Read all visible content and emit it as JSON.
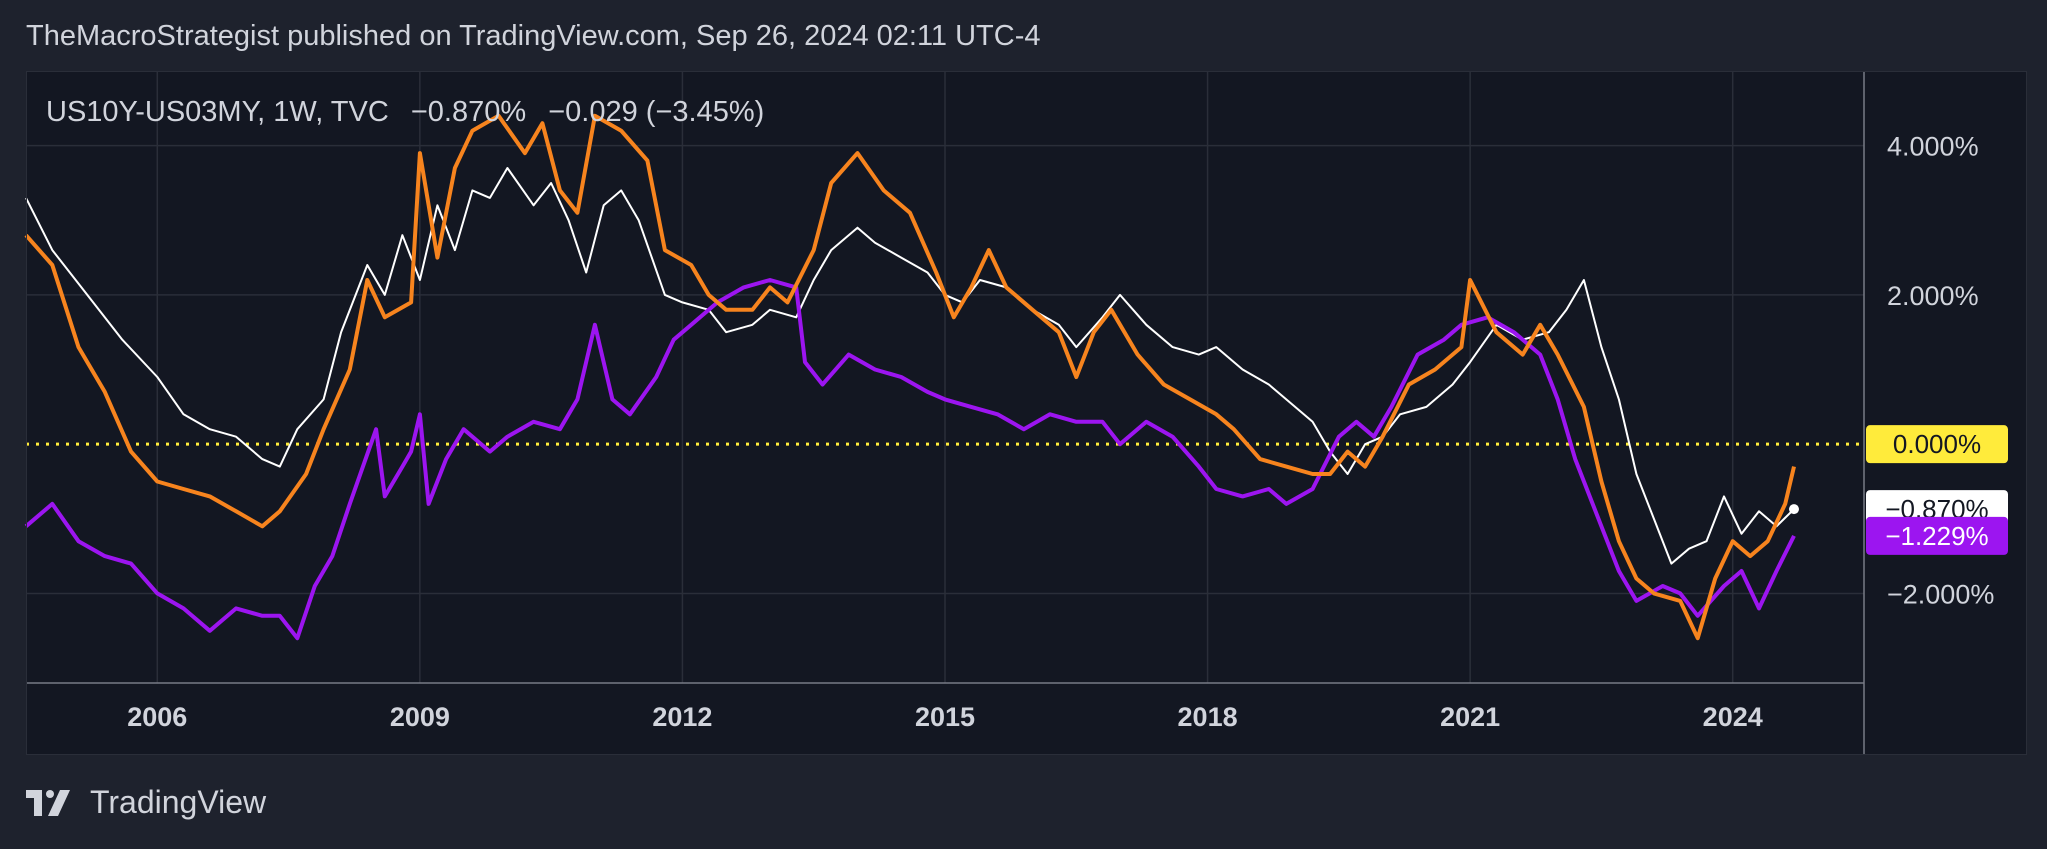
{
  "header": {
    "published": "TheMacroStrategist published on TradingView.com, Sep 26, 2024 02:11 UTC-4"
  },
  "legend": {
    "symbol": "US10Y-US03MY, 1W, TVC",
    "last": "−0.870%",
    "change": "−0.029 (−3.45%)"
  },
  "brand": {
    "name": "TradingView",
    "logo_icon": "tradingview-logo-icon"
  },
  "chart_data": {
    "type": "line",
    "x_ticks": [
      "2006",
      "2009",
      "2012",
      "2015",
      "2018",
      "2021",
      "2024"
    ],
    "y_ticks": [
      "4.000%",
      "2.000%",
      "0.000%",
      "−2.000%"
    ],
    "ylim": [
      -3.2,
      5.0
    ],
    "xlim": [
      2004.5,
      2025.5
    ],
    "grid": true,
    "reference_line": {
      "value": 0.0,
      "label": "0.000%",
      "color": "#ffeb3b",
      "style": "dotted"
    },
    "series": [
      {
        "name": "US10Y-US03MY",
        "color": "#ffffff",
        "last_label": "−0.870%",
        "values": [
          [
            2004.5,
            3.3
          ],
          [
            2004.8,
            2.6
          ],
          [
            2005.2,
            2.0
          ],
          [
            2005.6,
            1.4
          ],
          [
            2006.0,
            0.9
          ],
          [
            2006.3,
            0.4
          ],
          [
            2006.6,
            0.2
          ],
          [
            2006.9,
            0.1
          ],
          [
            2007.2,
            -0.2
          ],
          [
            2007.4,
            -0.3
          ],
          [
            2007.6,
            0.2
          ],
          [
            2007.9,
            0.6
          ],
          [
            2008.1,
            1.5
          ],
          [
            2008.4,
            2.4
          ],
          [
            2008.6,
            2.0
          ],
          [
            2008.8,
            2.8
          ],
          [
            2009.0,
            2.2
          ],
          [
            2009.2,
            3.2
          ],
          [
            2009.4,
            2.6
          ],
          [
            2009.6,
            3.4
          ],
          [
            2009.8,
            3.3
          ],
          [
            2010.0,
            3.7
          ],
          [
            2010.3,
            3.2
          ],
          [
            2010.5,
            3.5
          ],
          [
            2010.7,
            3.0
          ],
          [
            2010.9,
            2.3
          ],
          [
            2011.1,
            3.2
          ],
          [
            2011.3,
            3.4
          ],
          [
            2011.5,
            3.0
          ],
          [
            2011.8,
            2.0
          ],
          [
            2012.0,
            1.9
          ],
          [
            2012.3,
            1.8
          ],
          [
            2012.5,
            1.5
          ],
          [
            2012.8,
            1.6
          ],
          [
            2013.0,
            1.8
          ],
          [
            2013.3,
            1.7
          ],
          [
            2013.5,
            2.2
          ],
          [
            2013.7,
            2.6
          ],
          [
            2014.0,
            2.9
          ],
          [
            2014.2,
            2.7
          ],
          [
            2014.5,
            2.5
          ],
          [
            2014.8,
            2.3
          ],
          [
            2015.0,
            2.0
          ],
          [
            2015.2,
            1.9
          ],
          [
            2015.4,
            2.2
          ],
          [
            2015.7,
            2.1
          ],
          [
            2016.0,
            1.8
          ],
          [
            2016.3,
            1.6
          ],
          [
            2016.5,
            1.3
          ],
          [
            2016.8,
            1.7
          ],
          [
            2017.0,
            2.0
          ],
          [
            2017.3,
            1.6
          ],
          [
            2017.6,
            1.3
          ],
          [
            2017.9,
            1.2
          ],
          [
            2018.1,
            1.3
          ],
          [
            2018.4,
            1.0
          ],
          [
            2018.7,
            0.8
          ],
          [
            2018.9,
            0.6
          ],
          [
            2019.2,
            0.3
          ],
          [
            2019.4,
            -0.1
          ],
          [
            2019.6,
            -0.4
          ],
          [
            2019.8,
            0.0
          ],
          [
            2020.0,
            0.1
          ],
          [
            2020.2,
            0.4
          ],
          [
            2020.5,
            0.5
          ],
          [
            2020.8,
            0.8
          ],
          [
            2021.0,
            1.1
          ],
          [
            2021.3,
            1.6
          ],
          [
            2021.6,
            1.4
          ],
          [
            2021.9,
            1.5
          ],
          [
            2022.1,
            1.8
          ],
          [
            2022.3,
            2.2
          ],
          [
            2022.5,
            1.3
          ],
          [
            2022.7,
            0.6
          ],
          [
            2022.9,
            -0.4
          ],
          [
            2023.1,
            -1.0
          ],
          [
            2023.3,
            -1.6
          ],
          [
            2023.5,
            -1.4
          ],
          [
            2023.7,
            -1.3
          ],
          [
            2023.9,
            -0.7
          ],
          [
            2024.1,
            -1.2
          ],
          [
            2024.3,
            -0.9
          ],
          [
            2024.5,
            -1.1
          ],
          [
            2024.7,
            -0.87
          ]
        ]
      },
      {
        "name": "",
        "color": "#f7841e",
        "values": [
          [
            2004.5,
            2.8
          ],
          [
            2004.8,
            2.4
          ],
          [
            2005.1,
            1.3
          ],
          [
            2005.4,
            0.7
          ],
          [
            2005.7,
            -0.1
          ],
          [
            2006.0,
            -0.5
          ],
          [
            2006.3,
            -0.6
          ],
          [
            2006.6,
            -0.7
          ],
          [
            2006.9,
            -0.9
          ],
          [
            2007.2,
            -1.1
          ],
          [
            2007.4,
            -0.9
          ],
          [
            2007.7,
            -0.4
          ],
          [
            2007.9,
            0.2
          ],
          [
            2008.2,
            1.0
          ],
          [
            2008.4,
            2.2
          ],
          [
            2008.6,
            1.7
          ],
          [
            2008.9,
            1.9
          ],
          [
            2009.0,
            3.9
          ],
          [
            2009.2,
            2.5
          ],
          [
            2009.4,
            3.7
          ],
          [
            2009.6,
            4.2
          ],
          [
            2009.9,
            4.4
          ],
          [
            2010.2,
            3.9
          ],
          [
            2010.4,
            4.3
          ],
          [
            2010.6,
            3.4
          ],
          [
            2010.8,
            3.1
          ],
          [
            2011.0,
            4.4
          ],
          [
            2011.3,
            4.2
          ],
          [
            2011.6,
            3.8
          ],
          [
            2011.8,
            2.6
          ],
          [
            2012.1,
            2.4
          ],
          [
            2012.3,
            2.0
          ],
          [
            2012.5,
            1.8
          ],
          [
            2012.8,
            1.8
          ],
          [
            2013.0,
            2.1
          ],
          [
            2013.2,
            1.9
          ],
          [
            2013.5,
            2.6
          ],
          [
            2013.7,
            3.5
          ],
          [
            2014.0,
            3.9
          ],
          [
            2014.3,
            3.4
          ],
          [
            2014.6,
            3.1
          ],
          [
            2014.9,
            2.3
          ],
          [
            2015.1,
            1.7
          ],
          [
            2015.3,
            2.1
          ],
          [
            2015.5,
            2.6
          ],
          [
            2015.7,
            2.1
          ],
          [
            2016.0,
            1.8
          ],
          [
            2016.3,
            1.5
          ],
          [
            2016.5,
            0.9
          ],
          [
            2016.7,
            1.5
          ],
          [
            2016.9,
            1.8
          ],
          [
            2017.2,
            1.2
          ],
          [
            2017.5,
            0.8
          ],
          [
            2017.8,
            0.6
          ],
          [
            2018.1,
            0.4
          ],
          [
            2018.3,
            0.2
          ],
          [
            2018.6,
            -0.2
          ],
          [
            2018.9,
            -0.3
          ],
          [
            2019.2,
            -0.4
          ],
          [
            2019.4,
            -0.4
          ],
          [
            2019.6,
            -0.1
          ],
          [
            2019.8,
            -0.3
          ],
          [
            2020.0,
            0.1
          ],
          [
            2020.3,
            0.8
          ],
          [
            2020.6,
            1.0
          ],
          [
            2020.9,
            1.3
          ],
          [
            2021.0,
            2.2
          ],
          [
            2021.3,
            1.5
          ],
          [
            2021.6,
            1.2
          ],
          [
            2021.8,
            1.6
          ],
          [
            2022.0,
            1.2
          ],
          [
            2022.3,
            0.5
          ],
          [
            2022.5,
            -0.5
          ],
          [
            2022.7,
            -1.3
          ],
          [
            2022.9,
            -1.8
          ],
          [
            2023.1,
            -2.0
          ],
          [
            2023.4,
            -2.1
          ],
          [
            2023.6,
            -2.6
          ],
          [
            2023.8,
            -1.8
          ],
          [
            2024.0,
            -1.3
          ],
          [
            2024.2,
            -1.5
          ],
          [
            2024.4,
            -1.3
          ],
          [
            2024.6,
            -0.8
          ],
          [
            2024.7,
            -0.3
          ]
        ]
      },
      {
        "name": "",
        "color": "#9c15f0",
        "last_label": "−1.229%",
        "values": [
          [
            2004.5,
            -1.1
          ],
          [
            2004.8,
            -0.8
          ],
          [
            2005.1,
            -1.3
          ],
          [
            2005.4,
            -1.5
          ],
          [
            2005.7,
            -1.6
          ],
          [
            2006.0,
            -2.0
          ],
          [
            2006.3,
            -2.2
          ],
          [
            2006.6,
            -2.5
          ],
          [
            2006.9,
            -2.2
          ],
          [
            2007.2,
            -2.3
          ],
          [
            2007.4,
            -2.3
          ],
          [
            2007.6,
            -2.6
          ],
          [
            2007.8,
            -1.9
          ],
          [
            2008.0,
            -1.5
          ],
          [
            2008.2,
            -0.8
          ],
          [
            2008.5,
            0.2
          ],
          [
            2008.6,
            -0.7
          ],
          [
            2008.8,
            -0.3
          ],
          [
            2008.9,
            -0.1
          ],
          [
            2009.0,
            0.4
          ],
          [
            2009.1,
            -0.8
          ],
          [
            2009.3,
            -0.2
          ],
          [
            2009.5,
            0.2
          ],
          [
            2009.8,
            -0.1
          ],
          [
            2010.0,
            0.1
          ],
          [
            2010.3,
            0.3
          ],
          [
            2010.6,
            0.2
          ],
          [
            2010.8,
            0.6
          ],
          [
            2011.0,
            1.6
          ],
          [
            2011.2,
            0.6
          ],
          [
            2011.4,
            0.4
          ],
          [
            2011.7,
            0.9
          ],
          [
            2011.9,
            1.4
          ],
          [
            2012.1,
            1.6
          ],
          [
            2012.4,
            1.9
          ],
          [
            2012.7,
            2.1
          ],
          [
            2013.0,
            2.2
          ],
          [
            2013.3,
            2.1
          ],
          [
            2013.4,
            1.1
          ],
          [
            2013.6,
            0.8
          ],
          [
            2013.9,
            1.2
          ],
          [
            2014.2,
            1.0
          ],
          [
            2014.5,
            0.9
          ],
          [
            2014.8,
            0.7
          ],
          [
            2015.0,
            0.6
          ],
          [
            2015.3,
            0.5
          ],
          [
            2015.6,
            0.4
          ],
          [
            2015.9,
            0.2
          ],
          [
            2016.2,
            0.4
          ],
          [
            2016.5,
            0.3
          ],
          [
            2016.8,
            0.3
          ],
          [
            2017.0,
            0.0
          ],
          [
            2017.3,
            0.3
          ],
          [
            2017.6,
            0.1
          ],
          [
            2017.9,
            -0.3
          ],
          [
            2018.1,
            -0.6
          ],
          [
            2018.4,
            -0.7
          ],
          [
            2018.7,
            -0.6
          ],
          [
            2018.9,
            -0.8
          ],
          [
            2019.2,
            -0.6
          ],
          [
            2019.5,
            0.1
          ],
          [
            2019.7,
            0.3
          ],
          [
            2019.9,
            0.1
          ],
          [
            2020.1,
            0.5
          ],
          [
            2020.4,
            1.2
          ],
          [
            2020.7,
            1.4
          ],
          [
            2020.9,
            1.6
          ],
          [
            2021.2,
            1.7
          ],
          [
            2021.5,
            1.5
          ],
          [
            2021.8,
            1.2
          ],
          [
            2022.0,
            0.6
          ],
          [
            2022.2,
            -0.2
          ],
          [
            2022.5,
            -1.1
          ],
          [
            2022.7,
            -1.7
          ],
          [
            2022.9,
            -2.1
          ],
          [
            2023.2,
            -1.9
          ],
          [
            2023.4,
            -2.0
          ],
          [
            2023.6,
            -2.3
          ],
          [
            2023.9,
            -1.9
          ],
          [
            2024.1,
            -1.7
          ],
          [
            2024.3,
            -2.2
          ],
          [
            2024.5,
            -1.7
          ],
          [
            2024.7,
            -1.229
          ]
        ]
      }
    ]
  }
}
